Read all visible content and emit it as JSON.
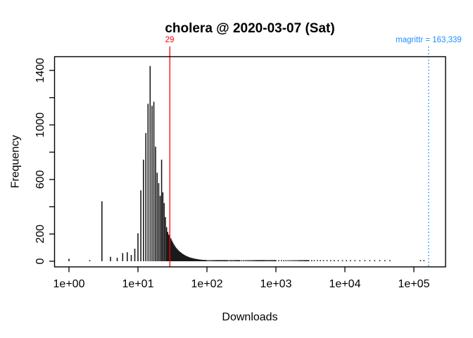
{
  "chart_data": {
    "type": "bar",
    "title": "cholera @ 2020-03-07 (Sat)",
    "xlabel": "Downloads",
    "ylabel": "Frequency",
    "x_scale": "log10",
    "x_range_px_note": "log axis, one decade per ~98px",
    "xlim": [
      1,
      200000
    ],
    "ylim": [
      0,
      1430
    ],
    "grid": false,
    "legend": "none",
    "bar_color": "#1b1b1b",
    "background": "#ffffff",
    "x_ticks": [
      {
        "value": 1,
        "label": "1e+00"
      },
      {
        "value": 10,
        "label": "1e+01"
      },
      {
        "value": 100,
        "label": "1e+02"
      },
      {
        "value": 1000,
        "label": "1e+03"
      },
      {
        "value": 10000,
        "label": "1e+04"
      },
      {
        "value": 100000,
        "label": "1e+05"
      }
    ],
    "y_ticks": [
      {
        "value": 0,
        "label": "0"
      },
      {
        "value": 200,
        "label": "200"
      },
      {
        "value": 400,
        "label": ""
      },
      {
        "value": 600,
        "label": "600"
      },
      {
        "value": 800,
        "label": ""
      },
      {
        "value": 1000,
        "label": "1000"
      },
      {
        "value": 1200,
        "label": ""
      },
      {
        "value": 1400,
        "label": "1400"
      }
    ],
    "annotations": [
      {
        "id": "red",
        "type": "vline",
        "x": 29,
        "label": "29",
        "color": "#ff0000",
        "style": "solid"
      },
      {
        "id": "blue",
        "type": "vline",
        "x": 163339,
        "label": "magrittr = 163,339",
        "color": "#1e90ff",
        "style": "dotted"
      }
    ],
    "bars": [
      [
        1,
        18
      ],
      [
        2,
        8
      ],
      [
        3,
        440
      ],
      [
        4,
        33
      ],
      [
        5,
        26
      ],
      [
        6,
        60
      ],
      [
        7,
        66
      ],
      [
        8,
        46
      ],
      [
        9,
        92
      ],
      [
        10,
        205
      ],
      [
        11,
        520
      ],
      [
        12,
        745
      ],
      [
        13,
        940
      ],
      [
        14,
        1155
      ],
      [
        15,
        1432
      ],
      [
        16,
        1140
      ],
      [
        17,
        1170
      ],
      [
        18,
        840
      ],
      [
        19,
        650
      ],
      [
        20,
        573
      ],
      [
        21,
        480
      ],
      [
        22,
        745
      ],
      [
        23,
        505
      ],
      [
        24,
        427
      ],
      [
        25,
        324
      ],
      [
        26,
        250
      ],
      [
        27,
        215
      ],
      [
        28,
        195
      ],
      [
        29,
        180
      ],
      [
        30,
        168
      ],
      [
        31,
        152
      ],
      [
        32,
        138
      ],
      [
        33,
        126
      ],
      [
        34,
        115
      ],
      [
        35,
        105
      ],
      [
        36,
        97
      ],
      [
        37,
        90
      ],
      [
        38,
        83
      ],
      [
        39,
        77
      ],
      [
        40,
        72
      ],
      [
        41,
        67
      ],
      [
        42,
        63
      ],
      [
        43,
        59
      ],
      [
        44,
        55
      ],
      [
        45,
        52
      ],
      [
        46,
        49
      ],
      [
        47,
        46
      ],
      [
        48,
        43
      ],
      [
        49,
        41
      ],
      [
        50,
        39
      ],
      [
        51,
        37
      ],
      [
        52,
        35
      ],
      [
        53,
        33
      ],
      [
        54,
        31
      ],
      [
        55,
        30
      ],
      [
        56,
        28
      ],
      [
        57,
        27
      ],
      [
        58,
        26
      ],
      [
        59,
        25
      ],
      [
        60,
        24
      ],
      [
        61,
        23
      ],
      [
        62,
        22
      ],
      [
        63,
        21
      ],
      [
        64,
        20
      ],
      [
        65,
        19
      ],
      [
        66,
        19
      ],
      [
        67,
        18
      ],
      [
        68,
        17
      ],
      [
        69,
        17
      ],
      [
        70,
        16
      ],
      [
        71,
        16
      ],
      [
        72,
        15
      ],
      [
        73,
        15
      ],
      [
        74,
        14
      ],
      [
        75,
        14
      ],
      [
        76,
        13
      ],
      [
        77,
        13
      ],
      [
        78,
        12
      ],
      [
        79,
        12
      ],
      [
        80,
        12
      ],
      [
        82,
        11
      ],
      [
        84,
        11
      ],
      [
        86,
        10
      ],
      [
        88,
        10
      ],
      [
        90,
        10
      ],
      [
        92,
        9
      ],
      [
        94,
        9
      ],
      [
        96,
        9
      ],
      [
        98,
        8
      ],
      [
        100,
        8
      ],
      [
        105,
        8
      ],
      [
        110,
        7
      ],
      [
        115,
        7
      ],
      [
        120,
        7
      ],
      [
        125,
        6
      ],
      [
        130,
        6
      ],
      [
        135,
        6
      ],
      [
        140,
        5
      ],
      [
        145,
        5
      ],
      [
        150,
        5
      ],
      [
        155,
        5
      ],
      [
        160,
        5
      ],
      [
        165,
        4
      ],
      [
        170,
        4
      ],
      [
        175,
        4
      ],
      [
        180,
        4
      ],
      [
        185,
        4
      ],
      [
        190,
        4
      ],
      [
        195,
        3
      ],
      [
        200,
        3
      ],
      [
        210,
        3
      ],
      [
        220,
        3
      ],
      [
        230,
        3
      ],
      [
        240,
        2
      ],
      [
        250,
        2
      ],
      [
        260,
        2
      ],
      [
        270,
        2
      ],
      [
        280,
        2
      ],
      [
        290,
        2
      ],
      [
        300,
        2
      ],
      [
        320,
        2
      ],
      [
        340,
        2
      ],
      [
        360,
        2
      ],
      [
        380,
        2
      ],
      [
        400,
        1
      ],
      [
        420,
        1
      ],
      [
        440,
        1
      ],
      [
        460,
        1
      ],
      [
        480,
        1
      ],
      [
        500,
        1
      ],
      [
        520,
        1
      ],
      [
        540,
        1
      ],
      [
        560,
        1
      ],
      [
        580,
        1
      ],
      [
        600,
        1
      ],
      [
        620,
        1
      ],
      [
        640,
        1
      ],
      [
        660,
        1
      ],
      [
        680,
        1
      ],
      [
        700,
        1
      ],
      [
        730,
        1
      ],
      [
        760,
        1
      ],
      [
        790,
        1
      ],
      [
        820,
        1
      ],
      [
        850,
        1
      ],
      [
        880,
        1
      ],
      [
        910,
        1
      ],
      [
        940,
        1
      ],
      [
        970,
        1
      ],
      [
        1000,
        1
      ],
      [
        1100,
        1
      ],
      [
        1200,
        1
      ],
      [
        1300,
        1
      ],
      [
        1400,
        1
      ],
      [
        1500,
        1
      ],
      [
        1600,
        1
      ],
      [
        1700,
        1
      ],
      [
        1800,
        1
      ],
      [
        1900,
        1
      ],
      [
        2000,
        1
      ],
      [
        2100,
        1
      ],
      [
        2200,
        1
      ],
      [
        2300,
        1
      ],
      [
        2400,
        1
      ],
      [
        2500,
        1
      ],
      [
        2600,
        1
      ],
      [
        2700,
        1
      ],
      [
        2800,
        1
      ],
      [
        2900,
        1
      ],
      [
        3000,
        1
      ],
      [
        3300,
        1
      ],
      [
        3600,
        1
      ],
      [
        4000,
        1
      ],
      [
        4400,
        1
      ],
      [
        4900,
        1
      ],
      [
        5500,
        1
      ],
      [
        6200,
        1
      ],
      [
        7000,
        1
      ],
      [
        8000,
        1
      ],
      [
        9200,
        1
      ],
      [
        10500,
        1
      ],
      [
        12000,
        1
      ],
      [
        14000,
        1
      ],
      [
        16500,
        1
      ],
      [
        19500,
        1
      ],
      [
        23000,
        1
      ],
      [
        27000,
        1
      ],
      [
        32000,
        1
      ],
      [
        38000,
        1
      ],
      [
        45000,
        1
      ],
      [
        125000,
        1
      ],
      [
        140000,
        1
      ]
    ]
  }
}
